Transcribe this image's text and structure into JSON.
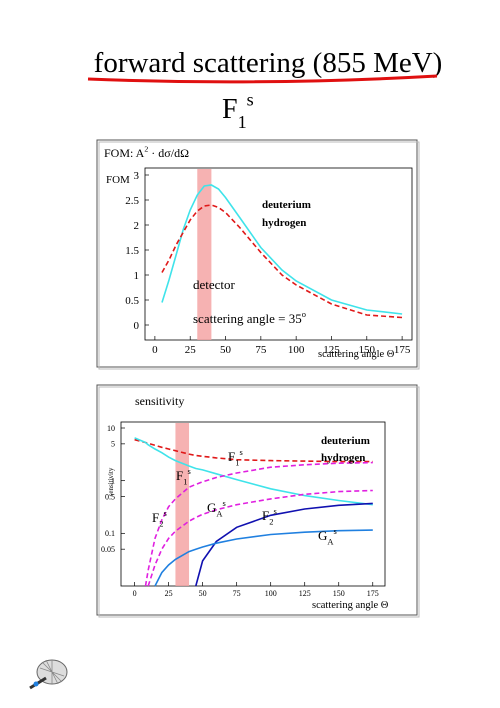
{
  "title": "forward scattering (855 MeV)",
  "subtitle": {
    "base": "F",
    "sub": "1",
    "sup": "s"
  },
  "chart_data": [
    {
      "type": "line",
      "label": {
        "text": "FOM: A",
        "sup": "2",
        "tail": " · dσ/dΩ"
      },
      "y_label": "FOM",
      "x_label": "scattering angle Θ",
      "annotations": {
        "detector": "detector",
        "angle": {
          "text": "scattering angle = 35",
          "sup": "o"
        }
      },
      "highlight": [
        30,
        40
      ],
      "x": [
        5,
        10,
        15,
        20,
        25,
        30,
        35,
        40,
        45,
        50,
        60,
        75,
        90,
        100,
        125,
        150,
        175
      ],
      "series": [
        {
          "name": "deuterium",
          "color": "#3fe3ea",
          "dash": false,
          "values": [
            0.45,
            0.9,
            1.4,
            1.9,
            2.3,
            2.6,
            2.78,
            2.8,
            2.72,
            2.55,
            2.15,
            1.55,
            1.1,
            0.88,
            0.5,
            0.3,
            0.22
          ]
        },
        {
          "name": "hydrogen",
          "color": "#e01818",
          "dash": true,
          "values": [
            1.05,
            1.3,
            1.6,
            1.85,
            2.1,
            2.28,
            2.38,
            2.4,
            2.35,
            2.25,
            1.95,
            1.45,
            1.0,
            0.8,
            0.42,
            0.2,
            0.15
          ]
        }
      ],
      "legend_colors": [
        "#2aa8b0",
        "#a01010"
      ],
      "legend": "upper right",
      "xlim": [
        -7,
        182
      ],
      "ylim": [
        -0.3,
        3.14
      ],
      "xticks": [
        0,
        25,
        50,
        75,
        100,
        125,
        150,
        175
      ],
      "yticks": [
        0,
        0.5,
        1,
        1.5,
        2,
        2.5,
        3
      ],
      "yscale": "linear"
    },
    {
      "type": "line",
      "label": {
        "text": "sensitivity"
      },
      "y_label": "sensitivity",
      "x_label": "scattering angle Θ",
      "highlight": [
        30,
        40
      ],
      "curve_labels": [
        {
          "base": "F",
          "sub": "1",
          "sup": "s"
        },
        {
          "base": "F",
          "sub": "1",
          "sup": "s"
        },
        {
          "base": "F",
          "sub": "2",
          "sup": "s"
        },
        {
          "base": "G",
          "sub": "A",
          "sup": "s"
        },
        {
          "base": "F",
          "sub": "2",
          "sup": "s"
        },
        {
          "base": "G",
          "sub": "A",
          "sup": "s"
        }
      ],
      "legend_entries": [
        {
          "name": "deuterium",
          "color": "#2aa8b0"
        },
        {
          "name": "hydrogen",
          "color": "#a01010"
        }
      ],
      "legend": "upper right",
      "x": [
        0,
        8,
        10,
        15,
        20,
        25,
        30,
        40,
        45,
        50,
        60,
        75,
        100,
        125,
        150,
        175
      ],
      "series": [
        {
          "color": "#e01818",
          "dash": true,
          "values": [
            6,
            5.3,
            5.1,
            4.7,
            4.3,
            4,
            3.7,
            3.2,
            3,
            2.9,
            2.7,
            2.5,
            2.4,
            2.35,
            2.3,
            2.3
          ]
        },
        {
          "color": "#3fe3ea",
          "dash": false,
          "values": [
            6.5,
            5.3,
            4.8,
            4,
            3.4,
            2.8,
            2.4,
            1.9,
            1.7,
            1.6,
            1.35,
            1.05,
            0.7,
            0.52,
            0.42,
            0.35
          ]
        },
        {
          "color": "#e020e0",
          "dash": true,
          "values": [
            null,
            0.01,
            0.02,
            0.08,
            0.18,
            0.32,
            0.45,
            0.75,
            0.85,
            0.95,
            1.15,
            1.4,
            1.8,
            2.0,
            2.15,
            2.2
          ]
        },
        {
          "color": "#e020e0",
          "dash": true,
          "values": [
            null,
            null,
            0.01,
            0.025,
            0.05,
            0.08,
            0.11,
            0.17,
            0.2,
            0.23,
            0.28,
            0.35,
            0.45,
            0.55,
            0.62,
            0.65
          ]
        },
        {
          "color": "#1010b0",
          "dash": false,
          "values": [
            null,
            null,
            null,
            null,
            null,
            null,
            null,
            null,
            0.01,
            0.03,
            0.07,
            0.13,
            0.22,
            0.29,
            0.34,
            0.37
          ]
        },
        {
          "color": "#2080e0",
          "dash": false,
          "values": [
            null,
            null,
            null,
            0.01,
            0.018,
            0.025,
            0.032,
            0.045,
            0.05,
            0.055,
            0.065,
            0.078,
            0.095,
            0.105,
            0.112,
            0.115
          ]
        }
      ],
      "xlim": [
        -10,
        184
      ],
      "ylim": [
        0.01,
        13
      ],
      "xticks": [
        0,
        25,
        50,
        75,
        100,
        125,
        150,
        175
      ],
      "yticks": [
        0.05,
        0.1,
        0.5,
        1,
        5,
        10
      ],
      "yscale": "log"
    }
  ]
}
